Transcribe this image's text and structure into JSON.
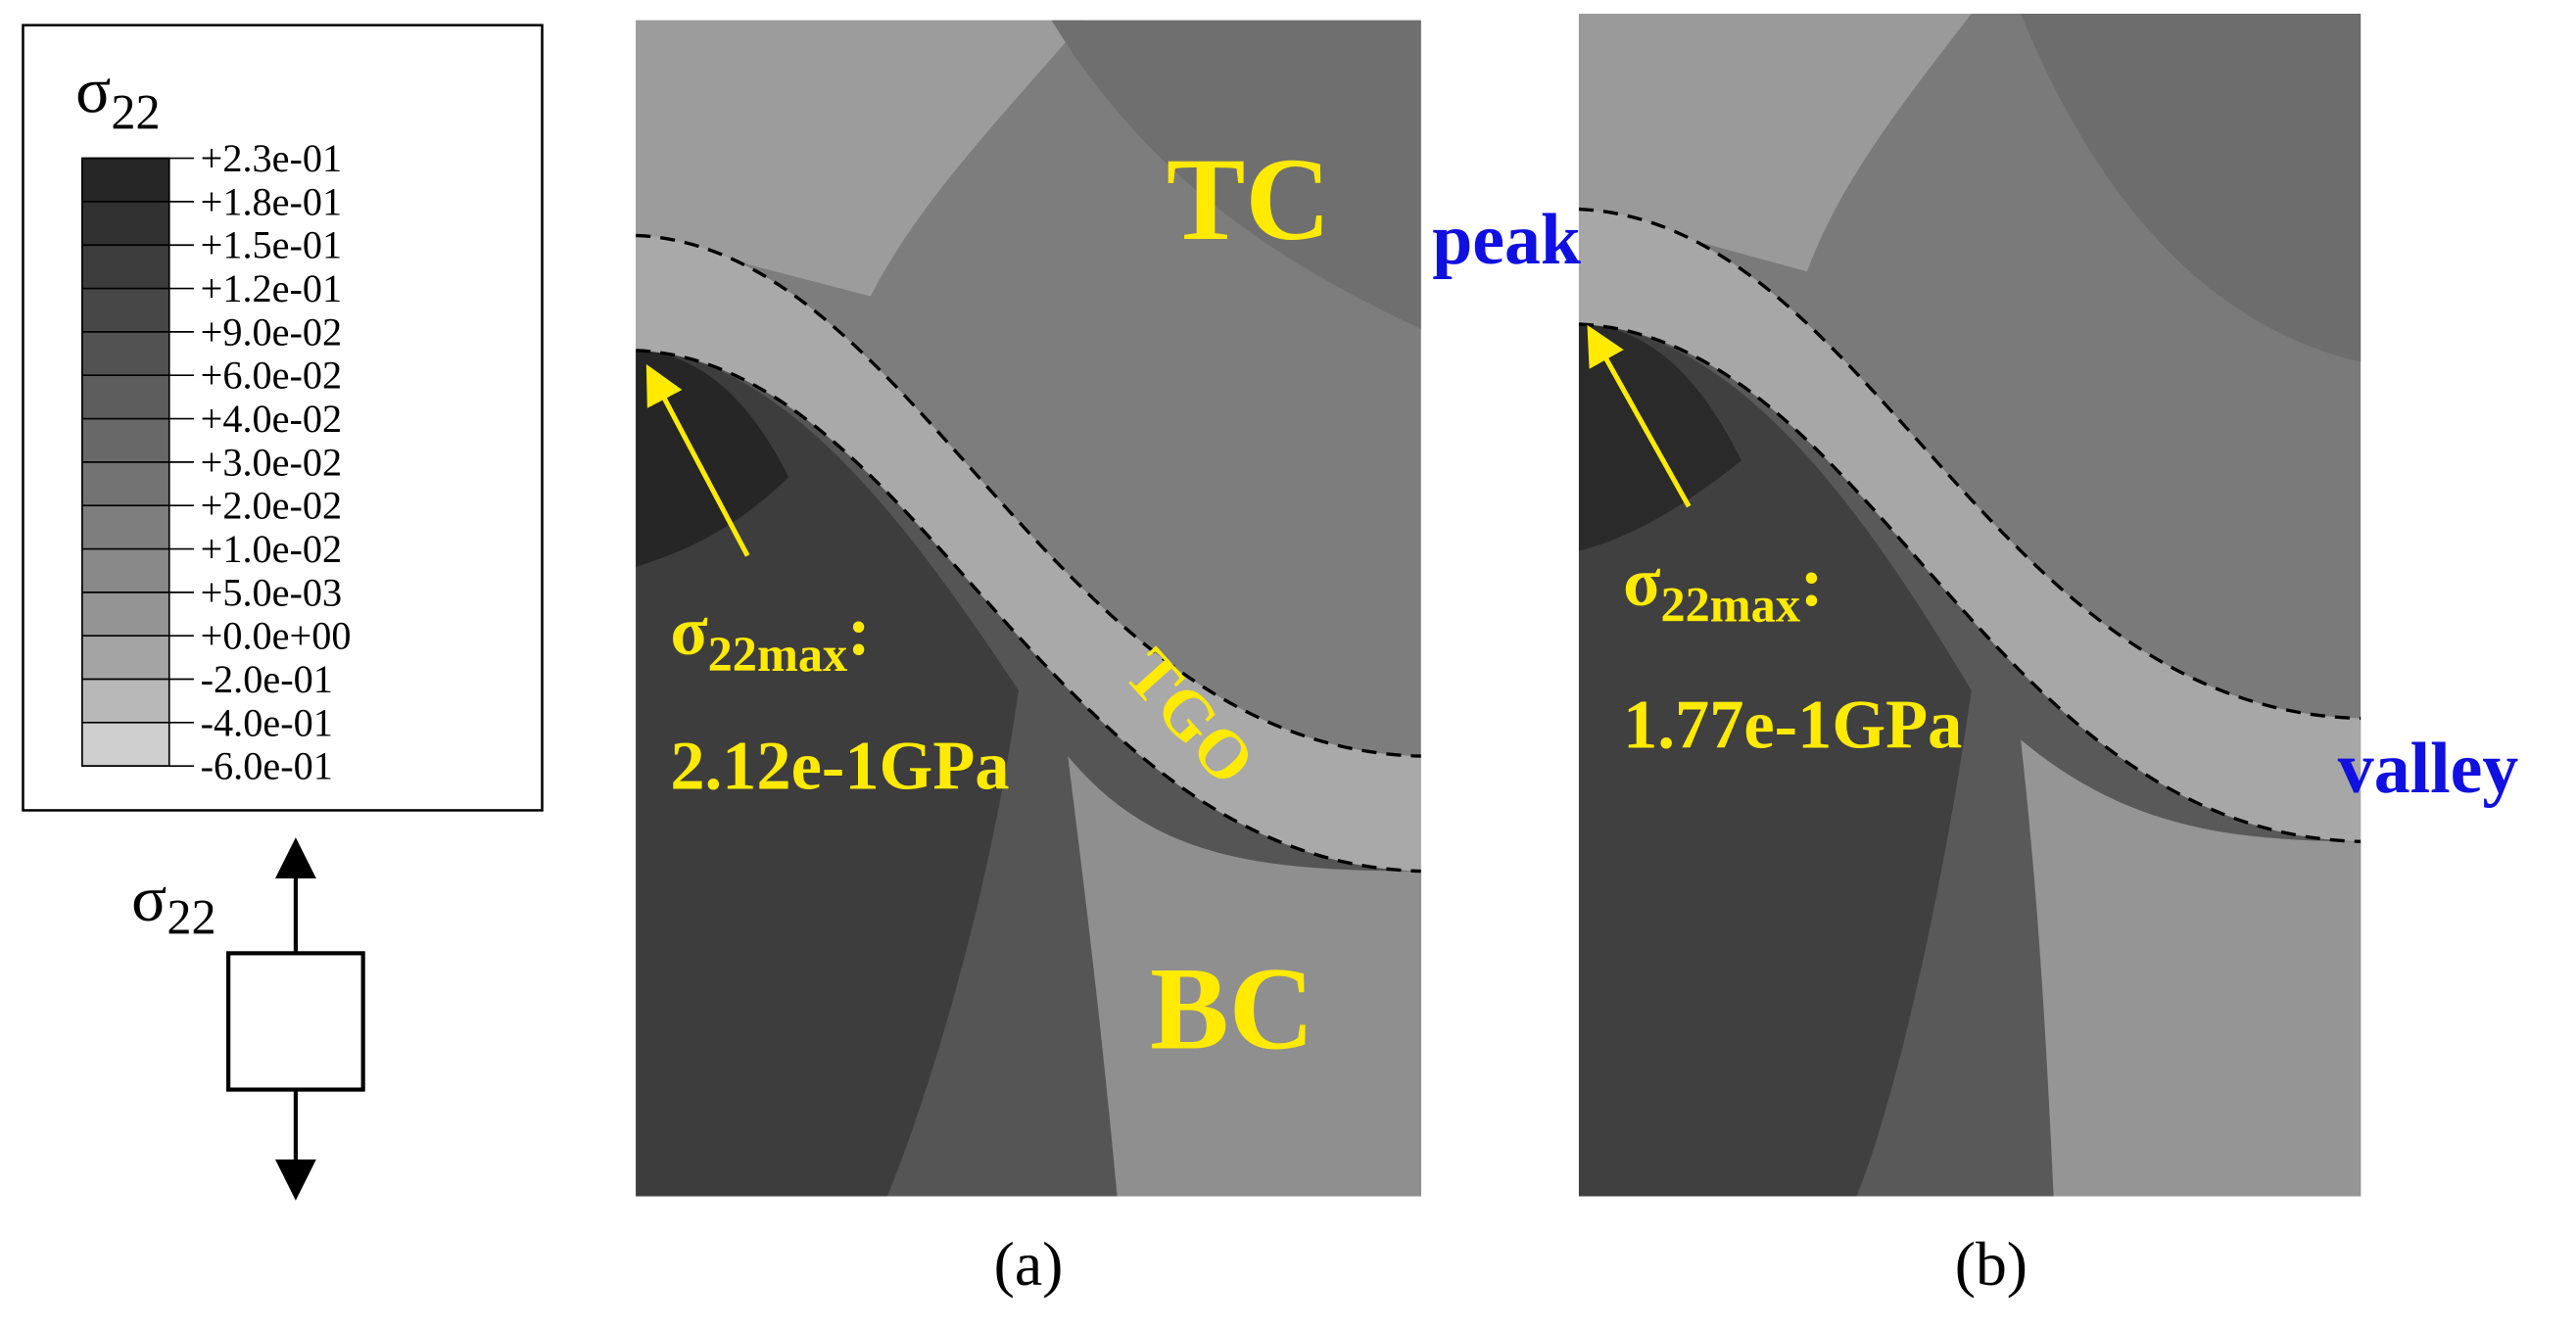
{
  "legend": {
    "title": {
      "symbol": "σ",
      "subscript": "22"
    },
    "labels": [
      "+2.3e-01",
      "+1.8e-01",
      "+1.5e-01",
      "+1.2e-01",
      "+9.0e-02",
      "+6.0e-02",
      "+4.0e-02",
      "+3.0e-02",
      "+2.0e-02",
      "+1.0e-02",
      "+5.0e-03",
      "+0.0e+00",
      "-2.0e-01",
      "-4.0e-01",
      "-6.0e-01"
    ],
    "colors": [
      "#262626",
      "#313131",
      "#3c3c3c",
      "#474747",
      "#525252",
      "#5d5d5d",
      "#686868",
      "#737373",
      "#7e7e7e",
      "#898989",
      "#949494",
      "#a4a4a4",
      "#b8b8b8",
      "#cfcfcf"
    ]
  },
  "load_diagram": {
    "symbol": "σ",
    "subscript": "22"
  },
  "panel_a": {
    "top_label": "TC",
    "bottom_label": "BC",
    "layer_label": "TGO",
    "max_symbol": "σ",
    "max_subscript": "22max",
    "max_suffix": ":",
    "max_value": "2.12e-1GPa",
    "caption": "(a)"
  },
  "panel_b": {
    "max_symbol": "σ",
    "max_subscript": "22max",
    "max_suffix": ":",
    "max_value": "1.77e-1GPa",
    "caption": "(b)"
  },
  "peak_label": "peak",
  "valley_label": "valley"
}
